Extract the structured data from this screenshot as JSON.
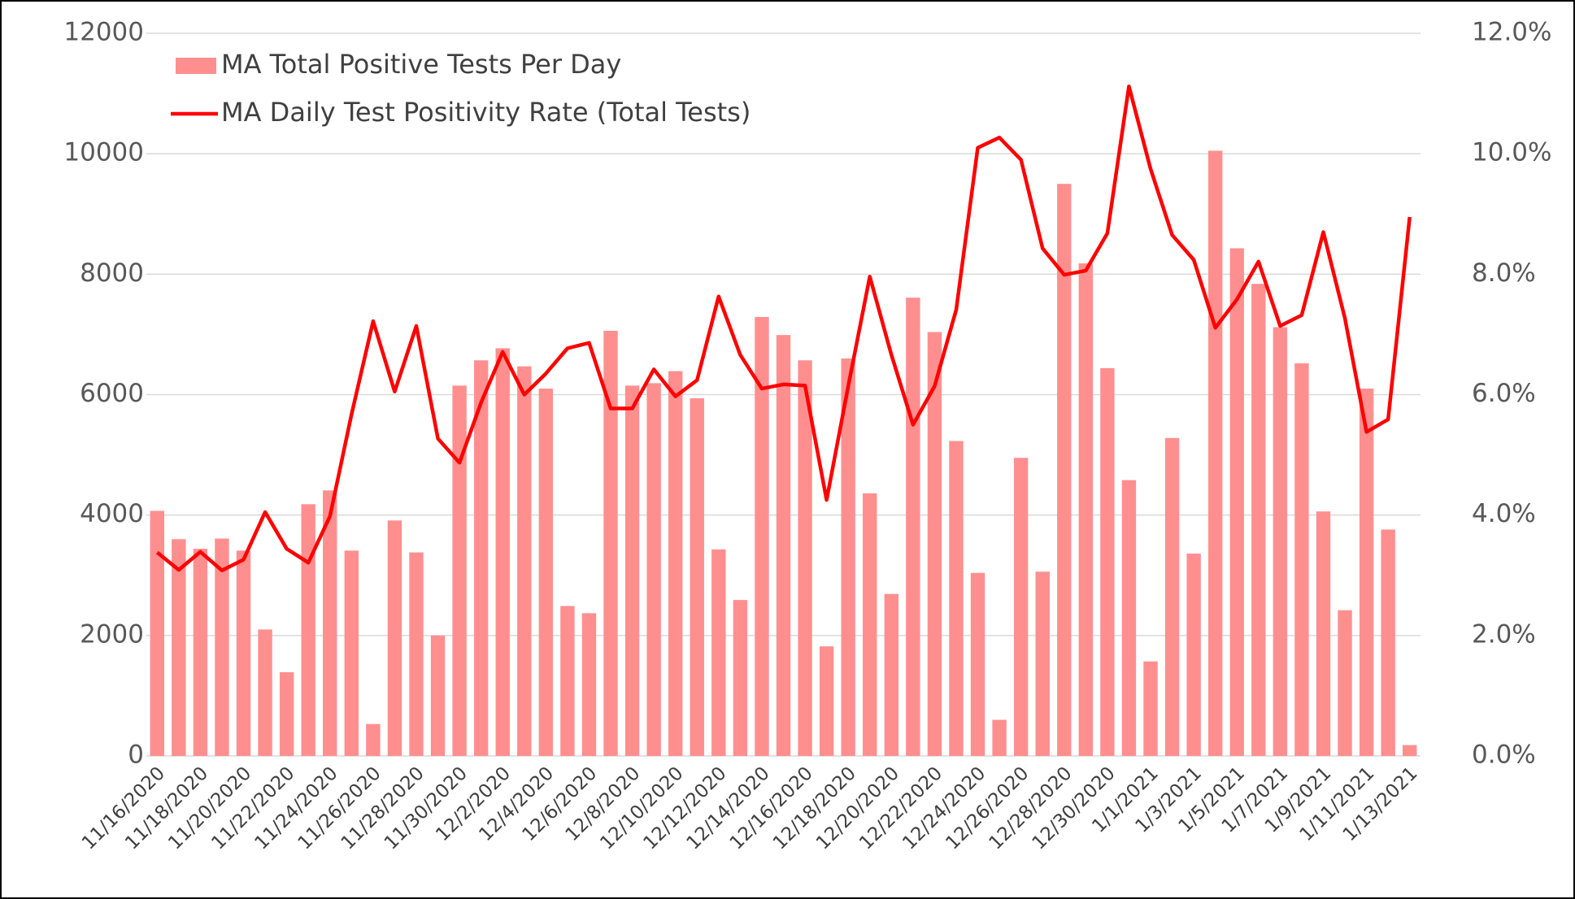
{
  "chart_data": {
    "type": "bar_line",
    "legend": "top-left",
    "grid": true,
    "categories": [
      "11/16/2020",
      null,
      "11/18/2020",
      null,
      "11/20/2020",
      null,
      "11/22/2020",
      null,
      "11/24/2020",
      null,
      "11/26/2020",
      null,
      "11/28/2020",
      null,
      "11/30/2020",
      null,
      "12/2/2020",
      null,
      "12/4/2020",
      null,
      "12/6/2020",
      null,
      "12/8/2020",
      null,
      "12/10/2020",
      null,
      "12/12/2020",
      null,
      "12/14/2020",
      null,
      "12/16/2020",
      null,
      "12/18/2020",
      null,
      "12/20/2020",
      null,
      "12/22/2020",
      null,
      "12/24/2020",
      null,
      "12/26/2020",
      null,
      "12/28/2020",
      null,
      "12/30/2020",
      null,
      "1/1/2021",
      null,
      "1/3/2021",
      null,
      "1/5/2021",
      null,
      "1/7/2021",
      null,
      "1/9/2021",
      null,
      "1/11/2021",
      null,
      "1/13/2021"
    ],
    "series": [
      {
        "name": "MA Total Positive Tests Per Day",
        "color": "#ff8f8f",
        "kind": "bar",
        "values": [
          4070,
          3600,
          3440,
          3610,
          3410,
          2100,
          1390,
          4180,
          4410,
          3410,
          530,
          3910,
          3380,
          2000,
          6150,
          6570,
          6770,
          6470,
          6100,
          2490,
          2370,
          7060,
          6150,
          6190,
          6390,
          5940,
          3430,
          2590,
          7290,
          6990,
          6570,
          1820,
          6600,
          4360,
          2690,
          7610,
          7040,
          5230,
          3040,
          600,
          4950,
          3060,
          9500,
          8180,
          6440,
          4580,
          1570,
          5280,
          3360,
          10050,
          8430,
          7840,
          7120,
          6520,
          4060,
          2420,
          6100,
          3760,
          180
        ]
      },
      {
        "name": "MA Daily Test Positivity Rate (Total Tests)",
        "color": "#ff0000",
        "kind": "line",
        "axis": "y2",
        "values": [
          3.38,
          3.09,
          3.39,
          3.08,
          3.26,
          4.05,
          3.44,
          3.21,
          3.98,
          5.67,
          7.22,
          6.05,
          7.14,
          5.27,
          4.87,
          5.87,
          6.71,
          6.0,
          6.35,
          6.77,
          6.86,
          5.77,
          5.77,
          6.42,
          5.97,
          6.24,
          7.63,
          6.66,
          6.1,
          6.17,
          6.15,
          4.25,
          6.14,
          7.96,
          6.66,
          5.5,
          6.14,
          7.41,
          10.1,
          10.27,
          9.9,
          8.43,
          7.99,
          8.06,
          8.68,
          11.12,
          9.75,
          8.65,
          8.24,
          7.11,
          7.58,
          8.21,
          7.14,
          7.32,
          8.7,
          7.27,
          5.38,
          5.59,
          8.95
        ]
      }
    ],
    "ylim": [
      0,
      12000
    ],
    "yticks": [
      0,
      2000,
      4000,
      6000,
      8000,
      10000,
      12000
    ],
    "y2lim": [
      0,
      12
    ],
    "y2ticks": [
      {
        "value": 0,
        "label": "0.0%"
      },
      {
        "value": 2,
        "label": "2.0%"
      },
      {
        "value": 4,
        "label": "4.0%"
      },
      {
        "value": 6,
        "label": "6.0%"
      },
      {
        "value": 8,
        "label": "8.0%"
      },
      {
        "value": 10,
        "label": "10.0%"
      },
      {
        "value": 12,
        "label": "12.0%"
      }
    ]
  }
}
